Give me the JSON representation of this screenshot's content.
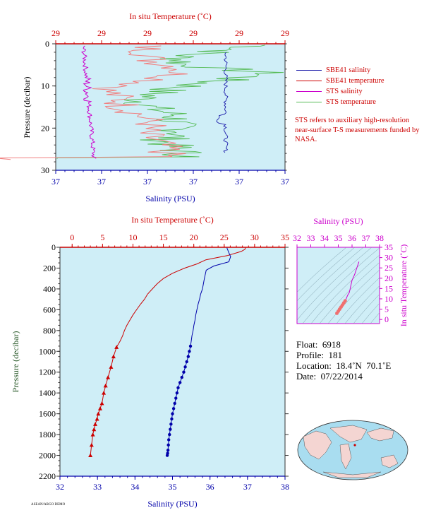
{
  "chart_data": [
    {
      "type": "line",
      "panel": "top",
      "top_axis_label": "In situ Temperature (˚C)",
      "top_ticks": [
        "29",
        "29",
        "29",
        "29",
        "29",
        "29"
      ],
      "bottom_axis_label": "Salinity (PSU)",
      "bottom_ticks": [
        "37",
        "37",
        "37",
        "37",
        "37",
        "37"
      ],
      "y_label": "Pressure (decibar)",
      "y_ticks": [
        "0",
        "10",
        "20",
        "30"
      ],
      "ylim": [
        0,
        30
      ],
      "legend": [
        {
          "name": "SBE41 salinity",
          "color": "#1a1aaa"
        },
        {
          "name": "SBE41 temperature",
          "color": "#cc0000"
        },
        {
          "name": "STS salinity",
          "color": "#cc00cc"
        },
        {
          "name": "STS temperature",
          "color": "#55bb55"
        }
      ],
      "note": "STS refers to auxiliary high-resolution near-surface T-S measurements funded by NASA."
    },
    {
      "type": "line",
      "panel": "bottom",
      "top_axis_label": "In situ Temperature (˚C)",
      "top_ticks": [
        "0",
        "5",
        "10",
        "15",
        "20",
        "25",
        "30",
        "35"
      ],
      "bottom_axis_label": "Salinity (PSU)",
      "bottom_ticks": [
        "32",
        "33",
        "34",
        "35",
        "36",
        "37",
        "38"
      ],
      "y_label": "Pressure (decibar)",
      "y_ticks": [
        "0",
        "200",
        "400",
        "600",
        "800",
        "1000",
        "1200",
        "1400",
        "1600",
        "1800",
        "2000",
        "2200"
      ],
      "temperature_xlim": [
        -2,
        35
      ],
      "salinity_xlim": [
        32,
        38
      ],
      "ylim": [
        0,
        2200
      ],
      "series": [
        {
          "name": "Temperature",
          "color": "#cc0000",
          "x": [
            28.5,
            28.4,
            27.8,
            25.5,
            22,
            20.5,
            18.5,
            16.5,
            15,
            14,
            13.2,
            12.4,
            11.9,
            11.2,
            10.6,
            10,
            9.5,
            9.0,
            8.6,
            8.3,
            7.9,
            7.3,
            6.8,
            6.4,
            5.9,
            5.5,
            5.2,
            4.9,
            4.6,
            4.3,
            4.1,
            3.8,
            3.6,
            3.4,
            3.2,
            3.0
          ],
          "y": [
            5,
            20,
            40,
            80,
            120,
            160,
            200,
            250,
            300,
            350,
            400,
            450,
            500,
            550,
            600,
            650,
            700,
            750,
            800,
            850,
            900,
            960,
            1050,
            1150,
            1250,
            1330,
            1400,
            1500,
            1550,
            1600,
            1650,
            1700,
            1750,
            1800,
            1900,
            2000
          ]
        },
        {
          "name": "Salinity",
          "color": "#0000aa",
          "x": [
            36.45,
            36.5,
            36.55,
            36.5,
            36.1,
            35.9,
            35.85,
            35.8,
            35.75,
            35.72,
            35.68,
            35.65,
            35.62,
            35.6,
            35.57,
            35.55,
            35.52,
            35.5,
            35.48,
            35.45,
            35.42,
            35.38,
            35.34,
            35.3,
            35.25,
            35.2,
            35.15,
            35.12,
            35.09,
            35.06,
            35.03,
            35.0,
            34.98,
            34.96,
            34.94,
            34.92,
            34.9,
            34.89,
            34.88,
            34.87,
            34.86
          ],
          "y": [
            5,
            50,
            90,
            140,
            180,
            220,
            300,
            400,
            450,
            500,
            550,
            600,
            650,
            700,
            750,
            800,
            850,
            900,
            950,
            1000,
            1050,
            1100,
            1150,
            1200,
            1250,
            1300,
            1350,
            1400,
            1450,
            1500,
            1550,
            1600,
            1650,
            1700,
            1750,
            1800,
            1850,
            1900,
            1950,
            1980,
            2000
          ]
        }
      ]
    },
    {
      "type": "scatter",
      "panel": "ts-inset",
      "top_axis_label": "Salinity (PSU)",
      "top_ticks": [
        "32",
        "33",
        "34",
        "35",
        "36",
        "37",
        "38"
      ],
      "right_axis_label": "In situ Temperature (˚C)",
      "right_ticks": [
        "0",
        "5",
        "10",
        "15",
        "20",
        "25",
        "30",
        "35"
      ],
      "xlim": [
        32,
        38
      ],
      "ylim": [
        -2,
        35
      ],
      "series": [
        {
          "name": "T-S",
          "color": "#cc00cc",
          "x": [
            34.9,
            35.0,
            35.1,
            35.2,
            35.3,
            35.4,
            35.5,
            35.6,
            35.7,
            35.8,
            35.85,
            35.9,
            35.95,
            36.0,
            36.1,
            36.2,
            36.3,
            36.4,
            36.5
          ],
          "y": [
            3.0,
            4.0,
            5.0,
            6.0,
            7.0,
            8.0,
            9.0,
            10.5,
            12,
            13,
            14.5,
            16,
            17.5,
            19,
            20.5,
            22,
            24,
            26,
            28
          ]
        }
      ]
    }
  ],
  "float_info": {
    "float": "Float:  6918",
    "profile": "Profile:  181",
    "location": "Location:  18.4˚N  70.1˚E",
    "date": "Date:  07/22/2014"
  },
  "colors": {
    "plot_bg": "#cfeef7",
    "temperature": "#cc0000",
    "salinity": "#0000aa",
    "pressure_axis": "#333333",
    "sts_salinity": "#cc00cc",
    "sts_temperature": "#55bb55"
  },
  "footer": "ASEAN/ARGO DEMO"
}
